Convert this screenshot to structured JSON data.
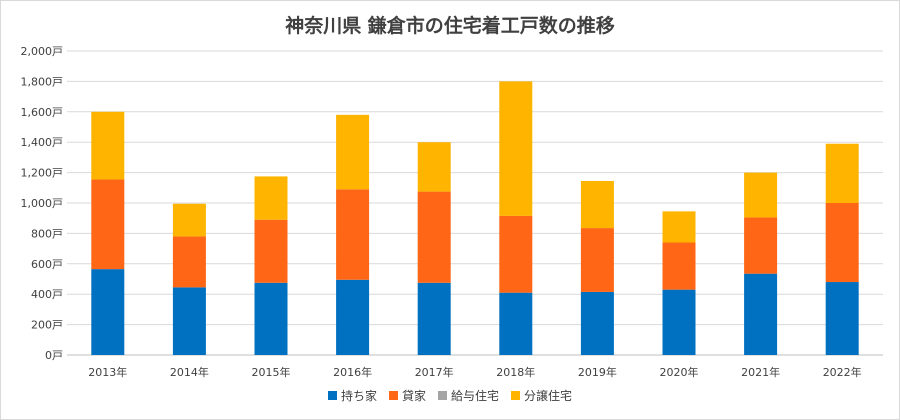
{
  "chart_data": {
    "type": "bar",
    "stacked": true,
    "title": "神奈川県 鎌倉市の住宅着工戸数の推移",
    "categories": [
      "2013年",
      "2014年",
      "2015年",
      "2016年",
      "2017年",
      "2018年",
      "2019年",
      "2020年",
      "2021年",
      "2022年"
    ],
    "series": [
      {
        "name": "持ち家",
        "color": "#0070c0",
        "values": [
          565,
          445,
          475,
          495,
          475,
          410,
          415,
          430,
          535,
          480
        ]
      },
      {
        "name": "貸家",
        "color": "#ff6616",
        "values": [
          590,
          335,
          415,
          595,
          600,
          505,
          420,
          310,
          370,
          520
        ]
      },
      {
        "name": "給与住宅",
        "color": "#a5a5a5",
        "values": [
          0,
          0,
          0,
          0,
          0,
          0,
          0,
          0,
          0,
          0
        ]
      },
      {
        "name": "分譲住宅",
        "color": "#ffb400",
        "values": [
          445,
          215,
          285,
          490,
          325,
          885,
          310,
          205,
          295,
          390
        ]
      }
    ],
    "ylim": [
      0,
      2000
    ],
    "yticks": [
      "0戸",
      "200戸",
      "400戸",
      "600戸",
      "800戸",
      "1,000戸",
      "1,200戸",
      "1,400戸",
      "1,600戸",
      "1,800戸",
      "2,000戸"
    ],
    "ytick_values": [
      0,
      200,
      400,
      600,
      800,
      1000,
      1200,
      1400,
      1600,
      1800,
      2000
    ],
    "grid": true,
    "legend_position": "bottom"
  }
}
